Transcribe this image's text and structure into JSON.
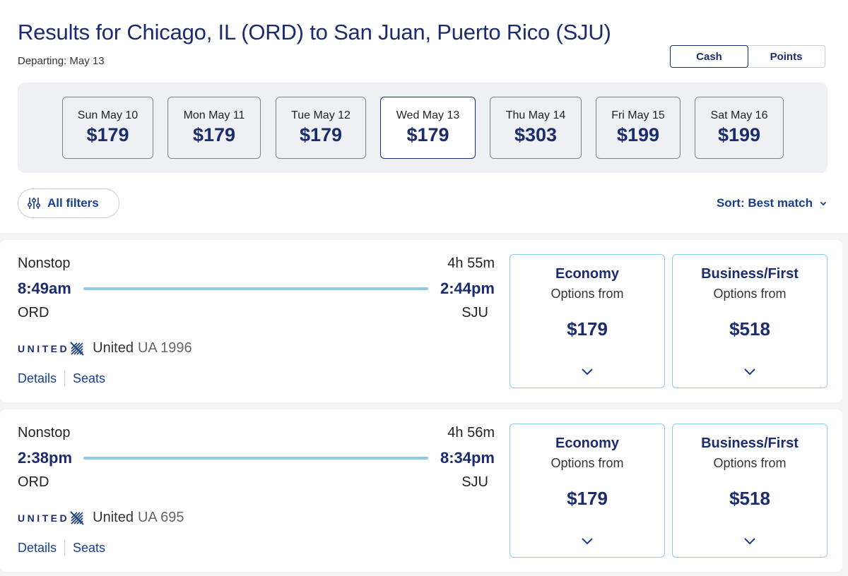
{
  "header": {
    "title": "Results for Chicago, IL (ORD) to San Juan, Puerto Rico (SJU)",
    "departing": "Departing: May 13"
  },
  "toggle": {
    "cash": "Cash",
    "points": "Points",
    "active": "Cash"
  },
  "dates": [
    {
      "day": "Sun May 10",
      "price": "$179"
    },
    {
      "day": "Mon May 11",
      "price": "$179"
    },
    {
      "day": "Tue May 12",
      "price": "$179"
    },
    {
      "day": "Wed May 13",
      "price": "$179"
    },
    {
      "day": "Thu May 14",
      "price": "$303"
    },
    {
      "day": "Fri May 15",
      "price": "$199"
    },
    {
      "day": "Sat May 16",
      "price": "$199"
    }
  ],
  "selected_date": "Wed May 13",
  "filters_label": "All filters",
  "sort_label": "Sort: Best match",
  "flights": [
    {
      "stops": "Nonstop",
      "duration": "4h 55m",
      "depart": "8:49am",
      "arrive": "2:44pm",
      "from": "ORD",
      "to": "SJU",
      "logo_text": "UNITED",
      "carrier": "United",
      "flight_no": "UA 1996",
      "details": "Details",
      "seats": "Seats",
      "fares": [
        {
          "class": "Economy",
          "options": "Options from",
          "price": "$179"
        },
        {
          "class": "Business/First",
          "options": "Options from",
          "price": "$518"
        }
      ]
    },
    {
      "stops": "Nonstop",
      "duration": "4h 56m",
      "depart": "2:38pm",
      "arrive": "8:34pm",
      "from": "ORD",
      "to": "SJU",
      "logo_text": "UNITED",
      "carrier": "United",
      "flight_no": "UA 695",
      "details": "Details",
      "seats": "Seats",
      "fares": [
        {
          "class": "Economy",
          "options": "Options from",
          "price": "$179"
        },
        {
          "class": "Business/First",
          "options": "Options from",
          "price": "$518"
        }
      ]
    }
  ],
  "icons": {
    "filters": "sliders-icon",
    "sort": "chevron-down-icon",
    "fare_expand": "chevron-down-icon",
    "airline_logo": "united-globe-icon"
  },
  "colors": {
    "brand_navy": "#1a2c6e",
    "link_blue": "#1a3d8f",
    "timeline": "#8ecbe9"
  }
}
